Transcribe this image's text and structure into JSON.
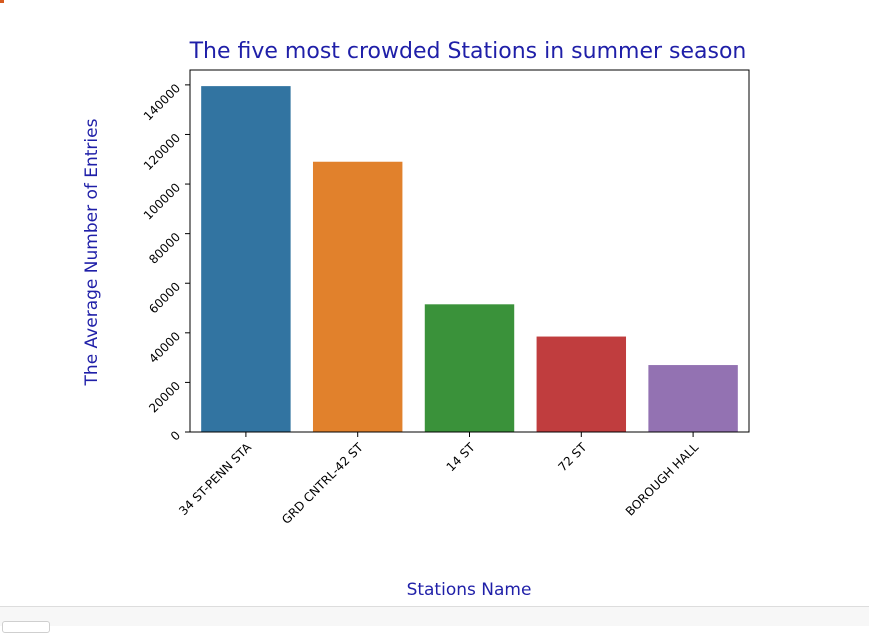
{
  "chart_data": {
    "type": "bar",
    "title": "The five most crowded Stations in summer season",
    "xlabel": "Stations Name",
    "ylabel": "The Average Number of Entries",
    "categories": [
      "34 ST-PENN STA",
      "GRD CNTRL-42 ST",
      "14 ST",
      "72 ST",
      "BOROUGH HALL"
    ],
    "values": [
      139500,
      109000,
      51500,
      38500,
      27000
    ],
    "colors": [
      "#3274a1",
      "#e1812c",
      "#3a923a",
      "#c03d3e",
      "#9372b2"
    ],
    "ylim": [
      0,
      146000
    ],
    "yticks": [
      0,
      20000,
      40000,
      60000,
      80000,
      100000,
      120000,
      140000
    ],
    "grid": false,
    "text_color": "#1f1fa8"
  }
}
